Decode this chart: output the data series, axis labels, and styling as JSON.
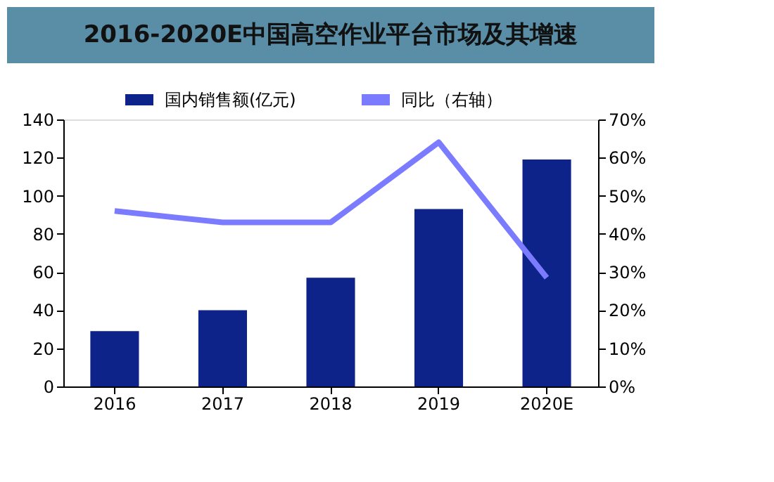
{
  "chart_data": {
    "type": "bar",
    "title": "2016-2020E中国高空作业平台市场及其增速",
    "categories": [
      "2016",
      "2017",
      "2018",
      "2019",
      "2020E"
    ],
    "series": [
      {
        "name": "国内销售额(亿元)",
        "color": "#0d2389",
        "values": [
          29,
          40,
          57,
          93,
          119
        ]
      },
      {
        "name": "同比（右轴）",
        "color": "#7b7bff",
        "type": "line",
        "axis": "y2",
        "values": [
          46,
          43,
          43,
          64,
          28.5
        ]
      }
    ],
    "ylim": [
      0,
      140
    ],
    "yticks": [
      0,
      20,
      40,
      60,
      80,
      100,
      120,
      140
    ],
    "y2lim": [
      0,
      70
    ],
    "y2ticks": [
      {
        "value": 0,
        "label": "0%"
      },
      {
        "value": 10,
        "label": "10%"
      },
      {
        "value": 20,
        "label": "20%"
      },
      {
        "value": 30,
        "label": "30%"
      },
      {
        "value": 40,
        "label": "40%"
      },
      {
        "value": 50,
        "label": "50%"
      },
      {
        "value": 60,
        "label": "60%"
      },
      {
        "value": 70,
        "label": "70%"
      }
    ],
    "grid": false,
    "legend": "top"
  }
}
